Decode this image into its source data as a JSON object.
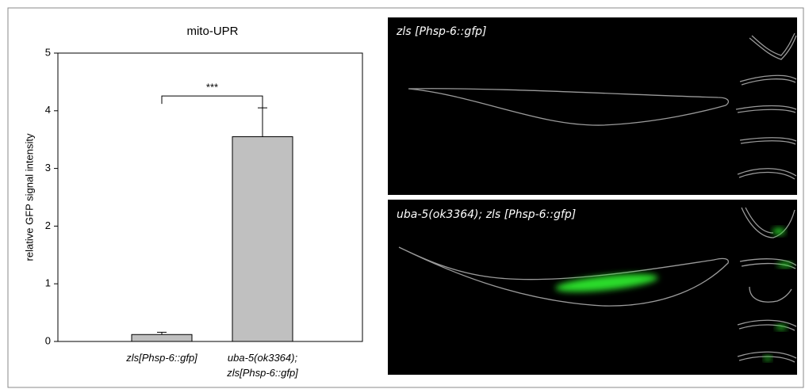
{
  "chart_data": {
    "type": "bar",
    "title": "mito-UPR",
    "y_label": "relative GFP signal intensity",
    "categories": [
      "zls[Phsp-6::gfp]",
      "uba-5(ok3364); zls[Phsp-6::gfp]"
    ],
    "values": [
      0.12,
      3.55
    ],
    "errors": [
      0.04,
      0.5
    ],
    "color": "#c0c0c0",
    "ylim": [
      0,
      5
    ],
    "yticks": [
      0,
      1,
      2,
      3,
      4,
      5
    ],
    "grid": false,
    "annotation": "***"
  },
  "panels": [
    {
      "label": "zls [Phsp-6::gfp]"
    },
    {
      "label": "uba-5(ok3364); zls [Phsp-6::gfp]"
    }
  ]
}
